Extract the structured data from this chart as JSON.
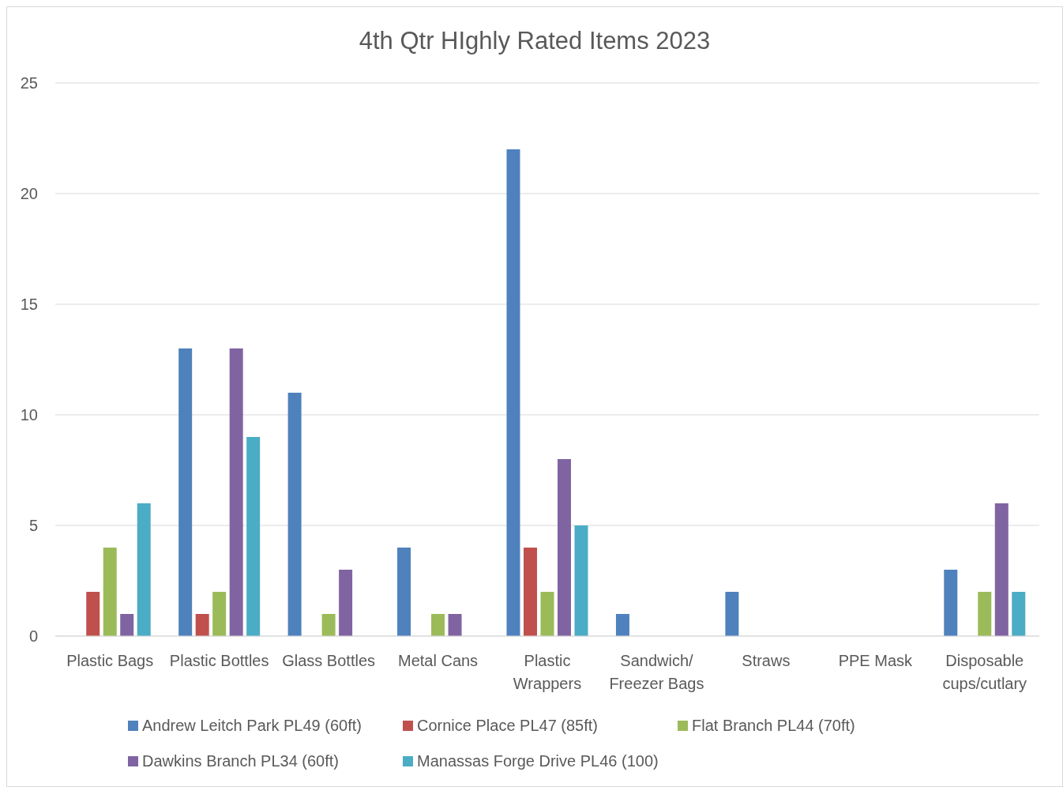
{
  "chart_data": {
    "type": "bar",
    "title": "4th Qtr HIghly Rated Items 2023",
    "categories": [
      "Plastic Bags",
      "Plastic Bottles",
      "Glass Bottles",
      "Metal Cans",
      "Plastic Wrappers",
      "Sandwich/ Freezer Bags",
      "Straws",
      "PPE Mask",
      "Disposable cups/cutlary"
    ],
    "series": [
      {
        "name": "Andrew Leitch Park PL49 (60ft)",
        "color": "#4f81bd",
        "values": [
          null,
          13,
          11,
          4,
          22,
          1,
          2,
          null,
          3
        ]
      },
      {
        "name": "Cornice Place PL47 (85ft)",
        "color": "#c0504d",
        "values": [
          2,
          1,
          null,
          null,
          4,
          null,
          null,
          null,
          null
        ]
      },
      {
        "name": "Flat Branch PL44 (70ft)",
        "color": "#9bbb59",
        "values": [
          4,
          2,
          1,
          1,
          2,
          null,
          null,
          null,
          2
        ]
      },
      {
        "name": "Dawkins Branch PL34 (60ft)",
        "color": "#8064a2",
        "values": [
          1,
          13,
          3,
          1,
          8,
          null,
          null,
          null,
          6
        ]
      },
      {
        "name": "Manassas Forge Drive PL46 (100)",
        "color": "#4bacc6",
        "values": [
          6,
          9,
          null,
          null,
          5,
          null,
          null,
          null,
          2
        ]
      }
    ],
    "ylim": [
      0,
      25
    ],
    "yticks": [
      0,
      5,
      10,
      15,
      20,
      25
    ],
    "grid": "y",
    "legend": "bottom"
  }
}
